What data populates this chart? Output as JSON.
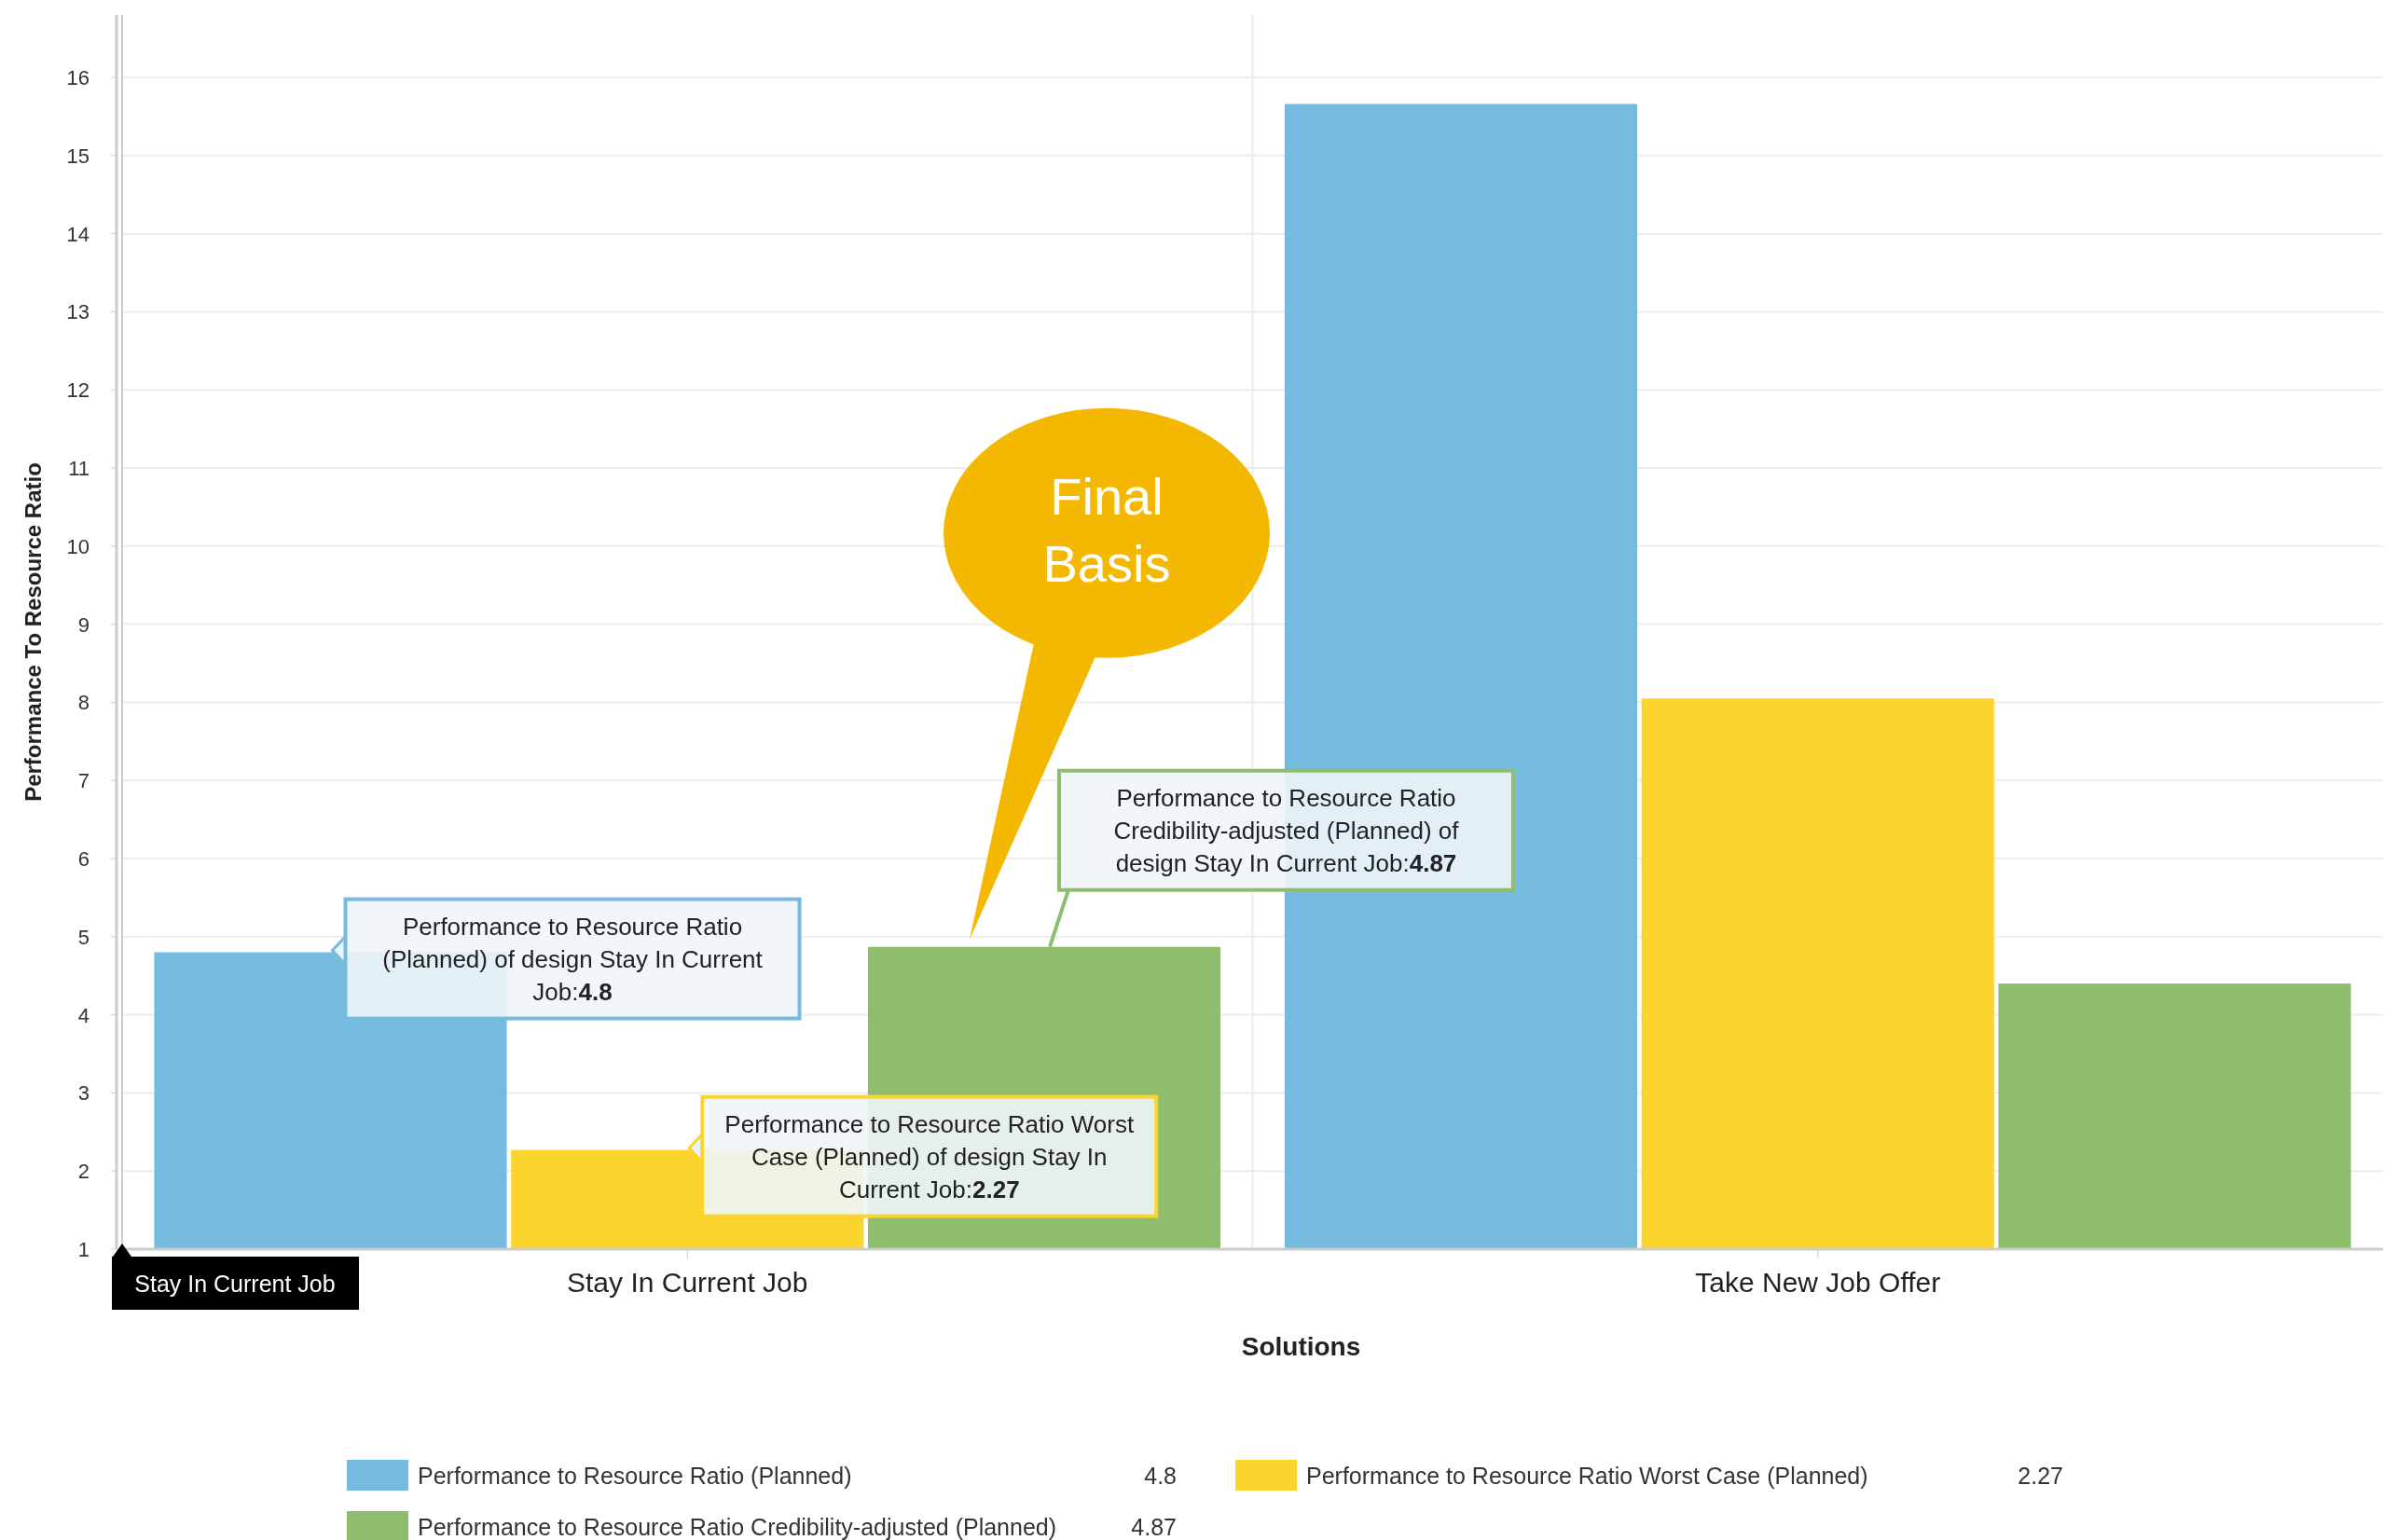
{
  "chart_data": {
    "type": "bar",
    "xlabel": "Solutions",
    "ylabel": "Performance To Resource Ratio",
    "categories": [
      "Stay In Current Job",
      "Take New Job Offer"
    ],
    "series": [
      {
        "name": "Performance to Resource Ratio (Planned)",
        "color": "#75bbdf",
        "values": [
          4.8,
          15.66
        ]
      },
      {
        "name": "Performance to Resource Ratio Worst Case (Planned)",
        "color": "#fbd52e",
        "values": [
          2.27,
          8.05
        ]
      },
      {
        "name": "Performance to Resource Ratio Credibility-adjusted (Planned)",
        "color": "#8fbd6e",
        "values": [
          4.87,
          4.4
        ]
      }
    ],
    "ylim": [
      1,
      16.8
    ],
    "yticks": [
      1,
      2,
      3,
      4,
      5,
      6,
      7,
      8,
      9,
      10,
      11,
      12,
      13,
      14,
      15,
      16
    ],
    "grid": true,
    "legend": "bottom",
    "annotations": [
      "Performance to Resource Ratio (Planned) of design Stay In Current Job:4.8",
      "Performance to Resource Ratio Worst Case (Planned) of design Stay In Current Job:2.27",
      "Performance to Resource Ratio Credibility-adjusted (Planned) of design Stay In Current Job:4.87",
      "Final Basis",
      "Stay In Current Job",
      "4.8",
      "2.27",
      "4.87"
    ]
  }
}
